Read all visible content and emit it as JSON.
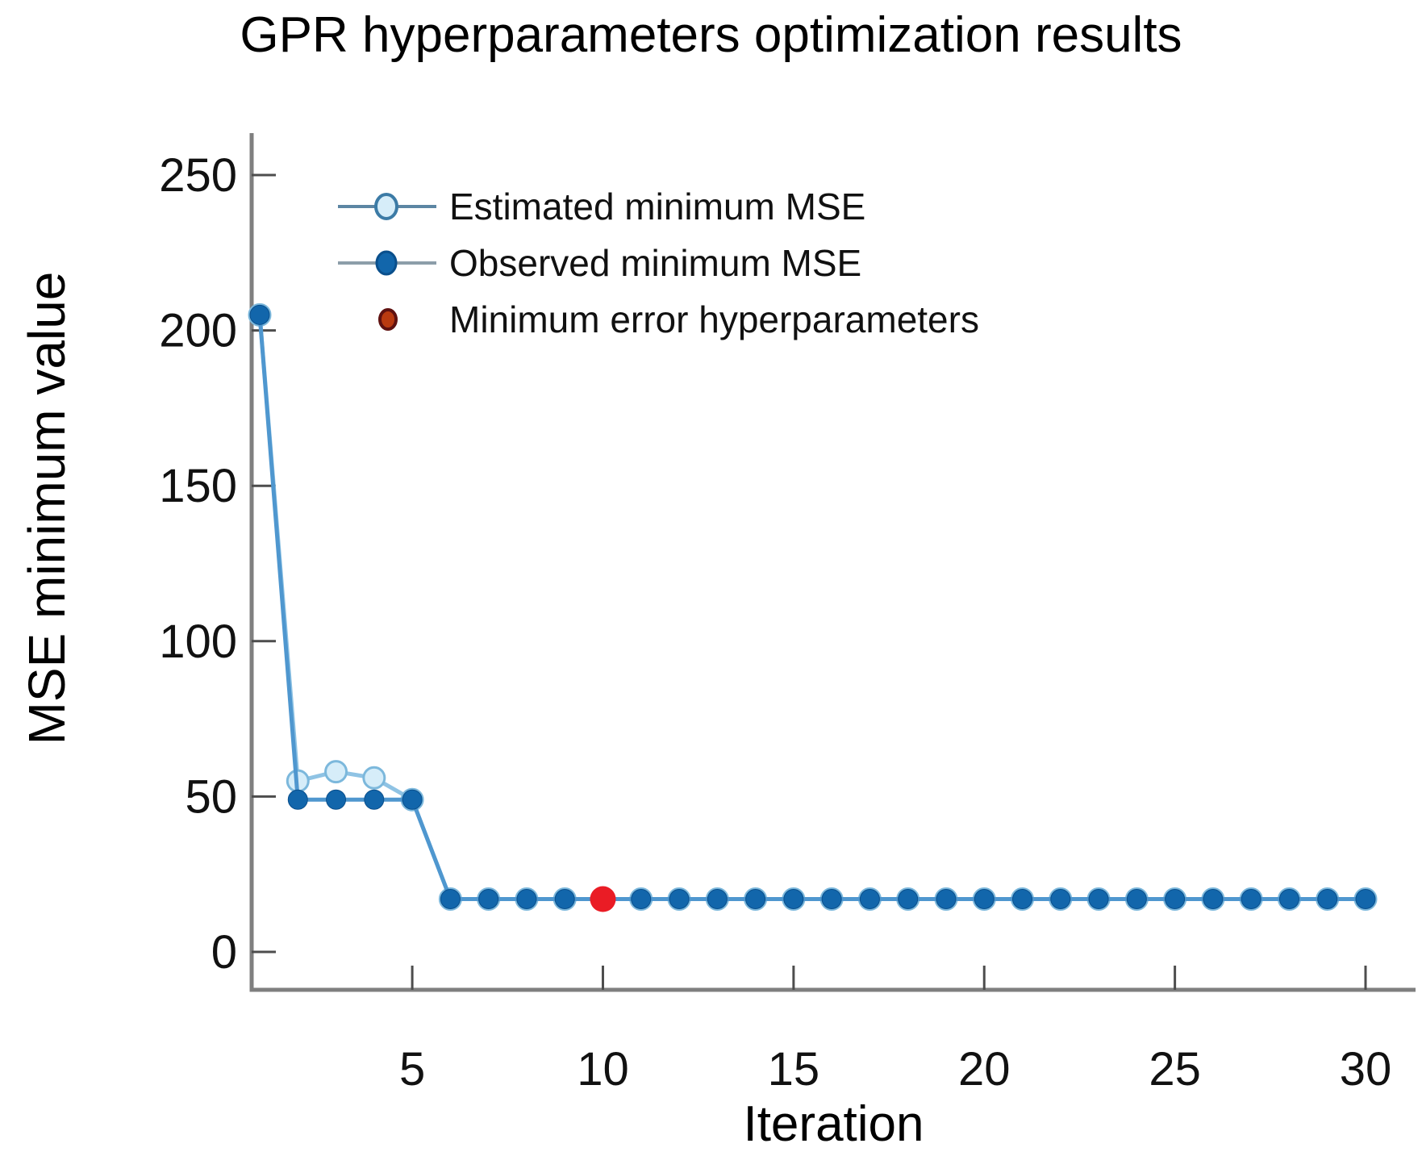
{
  "chart_data": {
    "type": "line",
    "title": "GPR hyperparameters optimization results",
    "xlabel": "Iteration",
    "ylabel": "MSE minimum value",
    "x": [
      1,
      2,
      3,
      4,
      5,
      6,
      7,
      8,
      9,
      10,
      11,
      12,
      13,
      14,
      15,
      16,
      17,
      18,
      19,
      20,
      21,
      22,
      23,
      24,
      25,
      26,
      27,
      28,
      29,
      30
    ],
    "series": [
      {
        "name": "Estimated minimum MSE",
        "values": [
          205,
          55,
          58,
          56,
          49,
          17,
          17,
          17,
          17,
          17,
          17,
          17,
          17,
          17,
          17,
          17,
          17,
          17,
          17,
          17,
          17,
          17,
          17,
          17,
          17,
          17,
          17,
          17,
          17,
          17
        ],
        "line_color": "#8fc3e4",
        "marker_fill": "#d6edf9",
        "marker_edge": "#7cb8dc",
        "marker": "circle-open",
        "legend_line_color": "#5c86a3"
      },
      {
        "name": "Observed minimum MSE",
        "values": [
          205,
          49,
          49,
          49,
          49,
          17,
          17,
          17,
          17,
          17,
          17,
          17,
          17,
          17,
          17,
          17,
          17,
          17,
          17,
          17,
          17,
          17,
          17,
          17,
          17,
          17,
          17,
          17,
          17,
          17
        ],
        "line_color": "#4f97cf",
        "marker_fill": "#1266ab",
        "marker_edge": "#0a4f8c",
        "marker": "circle-filled",
        "legend_line_color": "#8c9ea9"
      }
    ],
    "highlight_point": {
      "name": "Minimum error hyperparameters",
      "x": 10,
      "y": 17,
      "color": "#ea1c25",
      "legend_fill": "#b93a10",
      "legend_edge": "#5f1110"
    },
    "xlim": [
      1,
      30
    ],
    "ylim": [
      0,
      250
    ],
    "x_ticks": [
      5,
      10,
      15,
      20,
      25,
      30
    ],
    "y_ticks": [
      0,
      50,
      100,
      150,
      200,
      250
    ],
    "grid": false,
    "legend_position": "upper-left-inside",
    "axis_color": "#7f7f7f",
    "tick_color": "#4d4d4d",
    "text_color": "#111111"
  }
}
